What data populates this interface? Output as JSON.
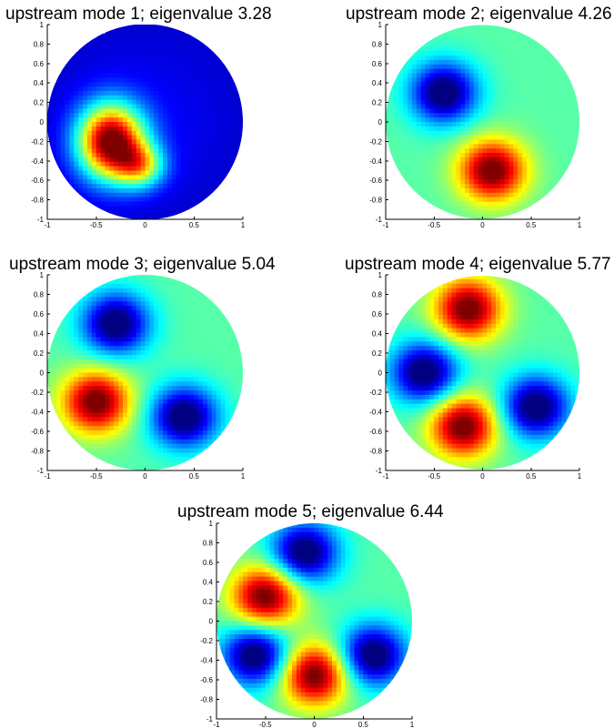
{
  "chart_data": [
    {
      "type": "heatmap",
      "title": "upstream mode 1; eigenvalue 3.28",
      "xlim": [
        -1,
        1
      ],
      "ylim": [
        -1,
        1
      ],
      "xticks": [
        "-1",
        "-0.5",
        "0",
        "0.5",
        "1"
      ],
      "yticks": [
        "1",
        "0.8",
        "0.6",
        "0.4",
        "0.2",
        "0",
        "-0.2",
        "-0.4",
        "-0.6",
        "-0.8",
        "-1"
      ],
      "colormap": "jet",
      "domain": "unit disk",
      "grid": false,
      "legend": "none",
      "extrema": [
        {
          "kind": "max",
          "x": -0.35,
          "y": -0.2
        },
        {
          "kind": "min",
          "x": 0.45,
          "y": 0.65
        }
      ]
    },
    {
      "type": "heatmap",
      "title": "upstream mode 2; eigenvalue 4.26",
      "xlim": [
        -1,
        1
      ],
      "ylim": [
        -1,
        1
      ],
      "xticks": [
        "-1",
        "-0.5",
        "0",
        "0.5",
        "1"
      ],
      "yticks": [
        "1",
        "0.8",
        "0.6",
        "0.4",
        "0.2",
        "0",
        "-0.2",
        "-0.4",
        "-0.6",
        "-0.8",
        "-1"
      ],
      "colormap": "jet",
      "domain": "unit disk",
      "grid": false,
      "legend": "none",
      "extrema": [
        {
          "kind": "min",
          "x": -0.4,
          "y": 0.3
        },
        {
          "kind": "max",
          "x": 0.1,
          "y": -0.5
        }
      ]
    },
    {
      "type": "heatmap",
      "title": "upstream mode 3; eigenvalue 5.04",
      "xlim": [
        -1,
        1
      ],
      "ylim": [
        -1,
        1
      ],
      "xticks": [
        "-1",
        "-0.5",
        "0",
        "0.5",
        "1"
      ],
      "yticks": [
        "1",
        "0.8",
        "0.6",
        "0.4",
        "0.2",
        "0",
        "-0.2",
        "-0.4",
        "-0.6",
        "-0.8",
        "-1"
      ],
      "colormap": "jet",
      "domain": "unit disk",
      "grid": false,
      "legend": "none",
      "extrema": [
        {
          "kind": "min",
          "x": -0.3,
          "y": 0.5
        },
        {
          "kind": "max",
          "x": -0.5,
          "y": -0.3
        },
        {
          "kind": "min",
          "x": 0.4,
          "y": -0.45
        }
      ]
    },
    {
      "type": "heatmap",
      "title": "upstream mode 4; eigenvalue 5.77",
      "xlim": [
        -1,
        1
      ],
      "ylim": [
        -1,
        1
      ],
      "xticks": [
        "-1",
        "-0.5",
        "0",
        "0.5",
        "1"
      ],
      "yticks": [
        "1",
        "0.8",
        "0.6",
        "0.4",
        "0.2",
        "0",
        "-0.2",
        "-0.4",
        "-0.6",
        "-0.8",
        "-1"
      ],
      "colormap": "jet",
      "domain": "unit disk",
      "grid": false,
      "legend": "none",
      "extrema": [
        {
          "kind": "max",
          "x": -0.15,
          "y": 0.65
        },
        {
          "kind": "min",
          "x": -0.6,
          "y": 0.0
        },
        {
          "kind": "max",
          "x": -0.2,
          "y": -0.55
        },
        {
          "kind": "min",
          "x": 0.55,
          "y": -0.35
        }
      ]
    },
    {
      "type": "heatmap",
      "title": "upstream mode 5; eigenvalue 6.44",
      "xlim": [
        -1,
        1
      ],
      "ylim": [
        -1,
        1
      ],
      "xticks": [
        "-1",
        "-0.5",
        "0",
        "0.5",
        "1"
      ],
      "yticks": [
        "1",
        "0.8",
        "0.6",
        "0.4",
        "0.2",
        "0",
        "-0.2",
        "-0.4",
        "-0.6",
        "-0.8",
        "-1"
      ],
      "colormap": "jet",
      "domain": "unit disk",
      "grid": false,
      "legend": "none",
      "extrema": [
        {
          "kind": "min",
          "x": -0.1,
          "y": 0.7
        },
        {
          "kind": "max",
          "x": -0.5,
          "y": 0.25
        },
        {
          "kind": "min",
          "x": -0.6,
          "y": -0.35
        },
        {
          "kind": "max",
          "x": 0.0,
          "y": -0.55
        },
        {
          "kind": "min",
          "x": 0.6,
          "y": -0.35
        }
      ]
    }
  ]
}
